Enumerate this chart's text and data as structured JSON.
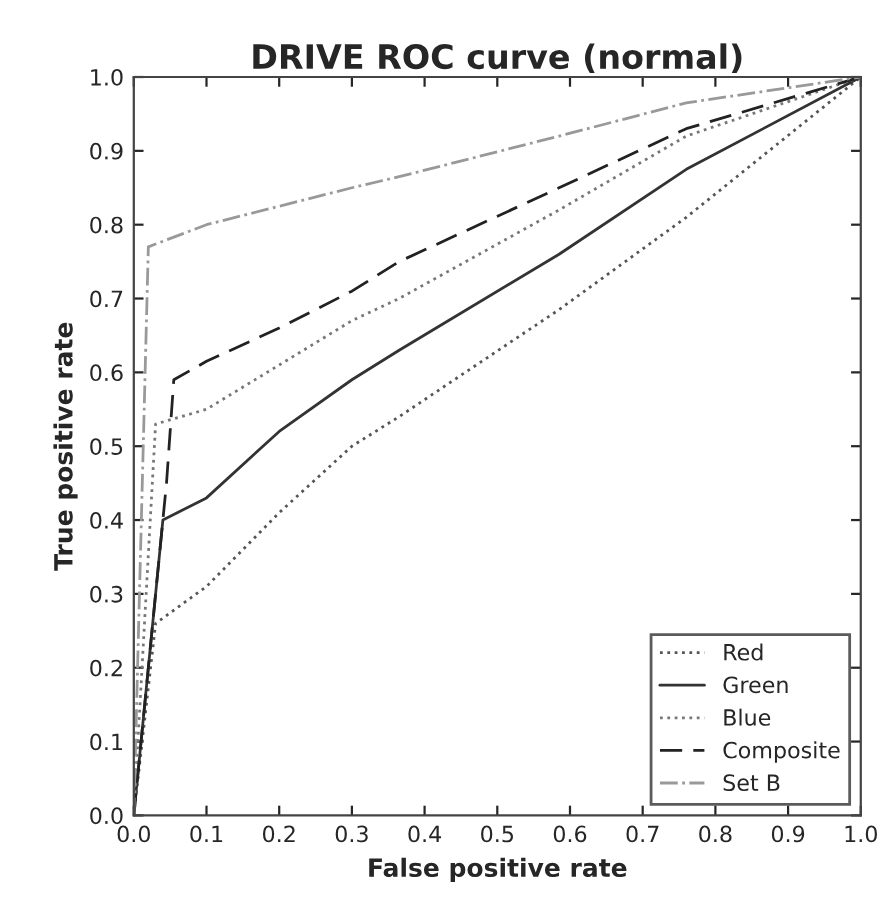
{
  "chart_data": {
    "type": "line",
    "title": "DRIVE ROC curve (normal)",
    "xlabel": "False positive rate",
    "ylabel": "True positive rate",
    "xlim": [
      0,
      1
    ],
    "ylim": [
      0,
      1
    ],
    "xticks": [
      {
        "value": 0,
        "label": "0.0"
      },
      0.1,
      0.2,
      0.3,
      0.4,
      0.5,
      0.6,
      0.7,
      0.8,
      0.9,
      {
        "value": 1,
        "label": "1.0"
      }
    ],
    "yticks": [
      {
        "value": 0,
        "label": "0.0"
      },
      0.1,
      0.2,
      0.3,
      0.4,
      0.5,
      0.6,
      0.7,
      0.8,
      0.9,
      {
        "value": 1,
        "label": "1.0"
      }
    ],
    "grid": false,
    "legend": "bottom right",
    "series": [
      {
        "name": "Red",
        "color": "#555555",
        "line_style": "dotted",
        "x": [
          0,
          0.03,
          0.1,
          0.2,
          0.3,
          0.365,
          0.585,
          0.76,
          1
        ],
        "values": [
          0,
          0.26,
          0.31,
          0.41,
          0.5,
          0.54,
          0.685,
          0.81,
          1
        ]
      },
      {
        "name": "Green",
        "color": "#333333",
        "line_style": "solid",
        "x": [
          0,
          0.04,
          0.1,
          0.2,
          0.3,
          0.365,
          0.585,
          0.76,
          1
        ],
        "values": [
          0,
          0.4,
          0.43,
          0.52,
          0.59,
          0.63,
          0.76,
          0.875,
          1
        ]
      },
      {
        "name": "Blue",
        "color": "#777777",
        "line_style": "dotted",
        "x": [
          0,
          0.03,
          0.1,
          0.2,
          0.3,
          0.365,
          0.585,
          0.76,
          1
        ],
        "values": [
          0,
          0.53,
          0.55,
          0.61,
          0.67,
          0.7,
          0.82,
          0.92,
          1
        ]
      },
      {
        "name": "Composite",
        "color": "#222222",
        "line_style": "dashed",
        "x": [
          0,
          0.045,
          0.055,
          0.1,
          0.2,
          0.3,
          0.365,
          0.585,
          0.76,
          1
        ],
        "values": [
          0,
          0.45,
          0.59,
          0.615,
          0.66,
          0.71,
          0.75,
          0.85,
          0.93,
          1
        ]
      },
      {
        "name": "Set B",
        "color": "#999999",
        "line_style": "dashdot",
        "x": [
          0,
          0.02,
          0.1,
          0.2,
          0.3,
          0.365,
          0.585,
          0.76,
          1
        ],
        "values": [
          0,
          0.77,
          0.8,
          0.825,
          0.85,
          0.865,
          0.92,
          0.965,
          1
        ]
      }
    ]
  }
}
